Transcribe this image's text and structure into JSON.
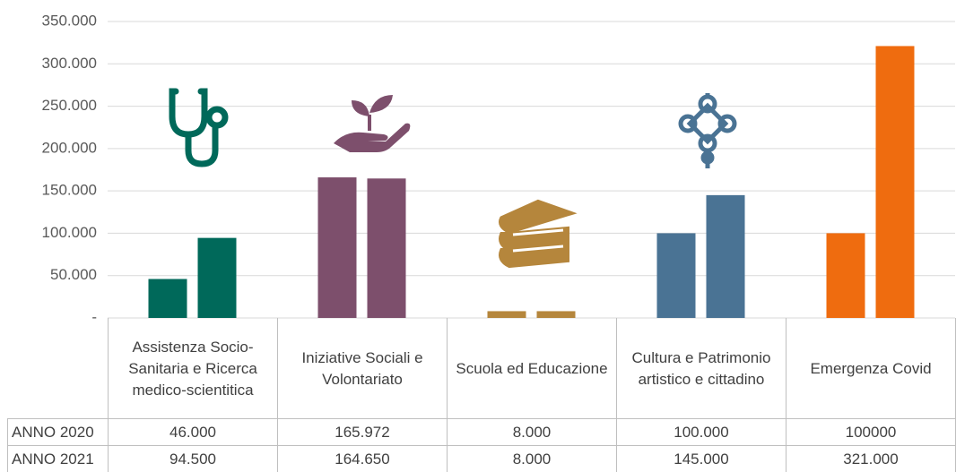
{
  "chart_data": {
    "type": "bar",
    "categories": [
      "Assistenza Socio-Sanitaria e Ricerca medico-scientitica",
      "Iniziative Sociali e Volontariato",
      "Scuola ed Educazione",
      "Cultura e Patrimonio artistico e cittadino",
      "Emergenza Covid"
    ],
    "category_colors": [
      "#00695a",
      "#7d4f6c",
      "#b5863c",
      "#4a7394",
      "#ef6c0f"
    ],
    "series": [
      {
        "name": "ANNO 2020",
        "values": [
          46000,
          165972,
          8000,
          100000,
          100000
        ],
        "value_labels": [
          "46.000",
          "165.972",
          "8.000",
          "100.000",
          "100000"
        ]
      },
      {
        "name": "ANNO 2021",
        "values": [
          94500,
          164650,
          8000,
          145000,
          321000
        ],
        "value_labels": [
          "94.500",
          "164.650",
          "8.000",
          "145.000",
          "321.000"
        ]
      }
    ],
    "ylim": [
      0,
      350000
    ],
    "yticks": [
      {
        "value": 0,
        "label": "-"
      },
      {
        "value": 50000,
        "label": "50.000"
      },
      {
        "value": 100000,
        "label": "100.000"
      },
      {
        "value": 150000,
        "label": "150.000"
      },
      {
        "value": 200000,
        "label": "200.000"
      },
      {
        "value": 250000,
        "label": "250.000"
      },
      {
        "value": 300000,
        "label": "300.000"
      },
      {
        "value": 350000,
        "label": "350.000"
      }
    ],
    "grid": true
  }
}
